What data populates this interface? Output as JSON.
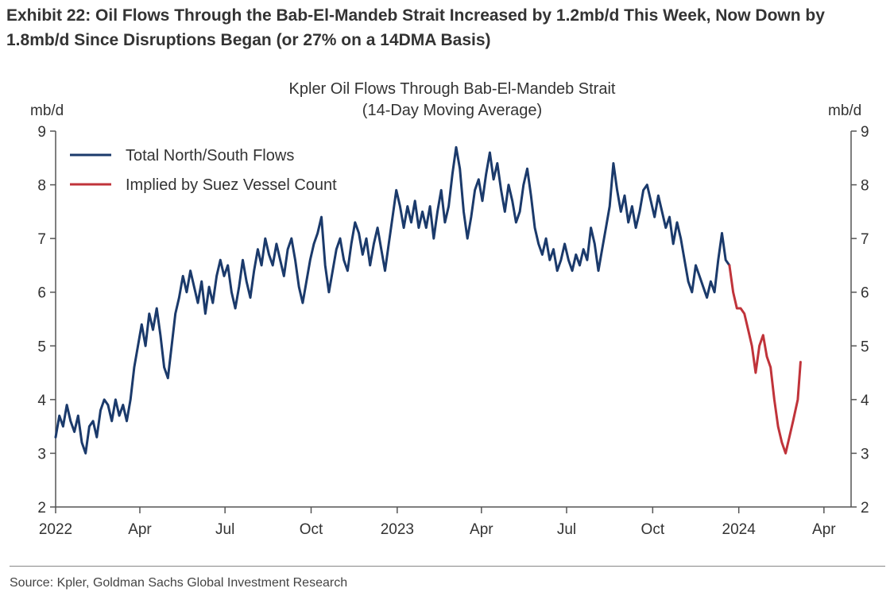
{
  "exhibit_title": "Exhibit 22: Oil Flows Through the Bab-El-Mandeb Strait Increased by 1.2mb/d This Week, Now Down by 1.8mb/d Since Disruptions Began (or 27% on a 14DMA Basis)",
  "source": "Source: Kpler, Goldman Sachs Global Investment Research",
  "chart_data": {
    "type": "line",
    "title": "Kpler Oil Flows Through Bab-El-Mandeb Strait",
    "subtitle": "(14-Day Moving Average)",
    "ylabel_left": "mb/d",
    "ylabel_right": "mb/d",
    "ylim": [
      2,
      9
    ],
    "yticks": [
      2,
      3,
      4,
      5,
      6,
      7,
      8,
      9
    ],
    "xlim": [
      "2022-01-01",
      "2024-04-30"
    ],
    "x_ticks": [
      {
        "date": "2022-01-01",
        "label": "2022"
      },
      {
        "date": "2022-04-01",
        "label": "Apr"
      },
      {
        "date": "2022-07-01",
        "label": "Jul"
      },
      {
        "date": "2022-10-01",
        "label": "Oct"
      },
      {
        "date": "2023-01-01",
        "label": "2023"
      },
      {
        "date": "2023-04-01",
        "label": "Apr"
      },
      {
        "date": "2023-07-01",
        "label": "Jul"
      },
      {
        "date": "2023-10-01",
        "label": "Oct"
      },
      {
        "date": "2024-01-01",
        "label": "2024"
      },
      {
        "date": "2024-04-01",
        "label": "Apr"
      }
    ],
    "legend_position": "top-left",
    "grid": false,
    "colors": {
      "total": "#1b3a6b",
      "suez": "#c0333a"
    },
    "series": [
      {
        "name": "Total North/South Flows",
        "color": "#1b3a6b",
        "points": [
          [
            "2022-01-01",
            3.3
          ],
          [
            "2022-01-05",
            3.7
          ],
          [
            "2022-01-09",
            3.5
          ],
          [
            "2022-01-13",
            3.9
          ],
          [
            "2022-01-17",
            3.6
          ],
          [
            "2022-01-21",
            3.4
          ],
          [
            "2022-01-25",
            3.7
          ],
          [
            "2022-01-29",
            3.2
          ],
          [
            "2022-02-02",
            3.0
          ],
          [
            "2022-02-06",
            3.5
          ],
          [
            "2022-02-10",
            3.6
          ],
          [
            "2022-02-14",
            3.3
          ],
          [
            "2022-02-18",
            3.8
          ],
          [
            "2022-02-22",
            4.0
          ],
          [
            "2022-02-26",
            3.9
          ],
          [
            "2022-03-02",
            3.6
          ],
          [
            "2022-03-06",
            4.0
          ],
          [
            "2022-03-10",
            3.7
          ],
          [
            "2022-03-14",
            3.9
          ],
          [
            "2022-03-18",
            3.6
          ],
          [
            "2022-03-22",
            4.0
          ],
          [
            "2022-03-26",
            4.6
          ],
          [
            "2022-03-30",
            5.0
          ],
          [
            "2022-04-03",
            5.4
          ],
          [
            "2022-04-07",
            5.0
          ],
          [
            "2022-04-11",
            5.6
          ],
          [
            "2022-04-15",
            5.3
          ],
          [
            "2022-04-19",
            5.7
          ],
          [
            "2022-04-23",
            5.2
          ],
          [
            "2022-04-27",
            4.6
          ],
          [
            "2022-05-01",
            4.4
          ],
          [
            "2022-05-05",
            5.0
          ],
          [
            "2022-05-09",
            5.6
          ],
          [
            "2022-05-13",
            5.9
          ],
          [
            "2022-05-17",
            6.3
          ],
          [
            "2022-05-21",
            6.0
          ],
          [
            "2022-05-25",
            6.4
          ],
          [
            "2022-05-29",
            6.1
          ],
          [
            "2022-06-02",
            5.8
          ],
          [
            "2022-06-06",
            6.2
          ],
          [
            "2022-06-10",
            5.6
          ],
          [
            "2022-06-14",
            6.1
          ],
          [
            "2022-06-18",
            5.8
          ],
          [
            "2022-06-22",
            6.3
          ],
          [
            "2022-06-26",
            6.6
          ],
          [
            "2022-06-30",
            6.3
          ],
          [
            "2022-07-04",
            6.5
          ],
          [
            "2022-07-08",
            6.0
          ],
          [
            "2022-07-12",
            5.7
          ],
          [
            "2022-07-16",
            6.1
          ],
          [
            "2022-07-20",
            6.6
          ],
          [
            "2022-07-24",
            6.2
          ],
          [
            "2022-07-28",
            5.9
          ],
          [
            "2022-08-01",
            6.4
          ],
          [
            "2022-08-05",
            6.8
          ],
          [
            "2022-08-09",
            6.5
          ],
          [
            "2022-08-13",
            7.0
          ],
          [
            "2022-08-17",
            6.7
          ],
          [
            "2022-08-21",
            6.5
          ],
          [
            "2022-08-25",
            6.9
          ],
          [
            "2022-08-29",
            6.6
          ],
          [
            "2022-09-02",
            6.3
          ],
          [
            "2022-09-06",
            6.8
          ],
          [
            "2022-09-10",
            7.0
          ],
          [
            "2022-09-14",
            6.6
          ],
          [
            "2022-09-18",
            6.1
          ],
          [
            "2022-09-22",
            5.8
          ],
          [
            "2022-09-26",
            6.2
          ],
          [
            "2022-09-30",
            6.6
          ],
          [
            "2022-10-04",
            6.9
          ],
          [
            "2022-10-08",
            7.1
          ],
          [
            "2022-10-12",
            7.4
          ],
          [
            "2022-10-16",
            6.5
          ],
          [
            "2022-10-20",
            6.0
          ],
          [
            "2022-10-24",
            6.4
          ],
          [
            "2022-10-28",
            6.8
          ],
          [
            "2022-11-01",
            7.0
          ],
          [
            "2022-11-05",
            6.6
          ],
          [
            "2022-11-09",
            6.4
          ],
          [
            "2022-11-13",
            6.9
          ],
          [
            "2022-11-17",
            7.3
          ],
          [
            "2022-11-21",
            7.1
          ],
          [
            "2022-11-25",
            6.7
          ],
          [
            "2022-11-29",
            7.0
          ],
          [
            "2022-12-03",
            6.5
          ],
          [
            "2022-12-07",
            6.9
          ],
          [
            "2022-12-11",
            7.2
          ],
          [
            "2022-12-15",
            6.8
          ],
          [
            "2022-12-19",
            6.4
          ],
          [
            "2022-12-23",
            6.9
          ],
          [
            "2022-12-27",
            7.4
          ],
          [
            "2022-12-31",
            7.9
          ],
          [
            "2023-01-04",
            7.6
          ],
          [
            "2023-01-08",
            7.2
          ],
          [
            "2023-01-12",
            7.6
          ],
          [
            "2023-01-16",
            7.3
          ],
          [
            "2023-01-20",
            7.7
          ],
          [
            "2023-01-24",
            7.2
          ],
          [
            "2023-01-28",
            7.5
          ],
          [
            "2023-02-01",
            7.2
          ],
          [
            "2023-02-05",
            7.6
          ],
          [
            "2023-02-09",
            7.0
          ],
          [
            "2023-02-13",
            7.5
          ],
          [
            "2023-02-17",
            7.9
          ],
          [
            "2023-02-21",
            7.3
          ],
          [
            "2023-02-25",
            7.6
          ],
          [
            "2023-03-01",
            8.2
          ],
          [
            "2023-03-05",
            8.7
          ],
          [
            "2023-03-09",
            8.3
          ],
          [
            "2023-03-13",
            7.5
          ],
          [
            "2023-03-17",
            7.0
          ],
          [
            "2023-03-21",
            7.4
          ],
          [
            "2023-03-25",
            7.9
          ],
          [
            "2023-03-29",
            8.1
          ],
          [
            "2023-04-02",
            7.7
          ],
          [
            "2023-04-06",
            8.2
          ],
          [
            "2023-04-10",
            8.6
          ],
          [
            "2023-04-14",
            8.1
          ],
          [
            "2023-04-18",
            8.4
          ],
          [
            "2023-04-22",
            7.9
          ],
          [
            "2023-04-26",
            7.5
          ],
          [
            "2023-04-30",
            8.0
          ],
          [
            "2023-05-04",
            7.7
          ],
          [
            "2023-05-08",
            7.3
          ],
          [
            "2023-05-12",
            7.5
          ],
          [
            "2023-05-16",
            8.0
          ],
          [
            "2023-05-20",
            8.3
          ],
          [
            "2023-05-24",
            7.8
          ],
          [
            "2023-05-28",
            7.2
          ],
          [
            "2023-06-01",
            6.9
          ],
          [
            "2023-06-05",
            6.7
          ],
          [
            "2023-06-09",
            7.0
          ],
          [
            "2023-06-13",
            6.6
          ],
          [
            "2023-06-17",
            6.8
          ],
          [
            "2023-06-21",
            6.4
          ],
          [
            "2023-06-25",
            6.6
          ],
          [
            "2023-06-29",
            6.9
          ],
          [
            "2023-07-03",
            6.6
          ],
          [
            "2023-07-07",
            6.4
          ],
          [
            "2023-07-11",
            6.7
          ],
          [
            "2023-07-15",
            6.5
          ],
          [
            "2023-07-19",
            6.8
          ],
          [
            "2023-07-23",
            6.6
          ],
          [
            "2023-07-27",
            7.2
          ],
          [
            "2023-07-31",
            6.9
          ],
          [
            "2023-08-04",
            6.4
          ],
          [
            "2023-08-08",
            6.8
          ],
          [
            "2023-08-12",
            7.2
          ],
          [
            "2023-08-16",
            7.6
          ],
          [
            "2023-08-20",
            8.4
          ],
          [
            "2023-08-24",
            7.9
          ],
          [
            "2023-08-28",
            7.5
          ],
          [
            "2023-09-01",
            7.8
          ],
          [
            "2023-09-05",
            7.3
          ],
          [
            "2023-09-09",
            7.6
          ],
          [
            "2023-09-13",
            7.2
          ],
          [
            "2023-09-17",
            7.5
          ],
          [
            "2023-09-21",
            7.9
          ],
          [
            "2023-09-25",
            8.0
          ],
          [
            "2023-09-29",
            7.7
          ],
          [
            "2023-10-03",
            7.4
          ],
          [
            "2023-10-07",
            7.8
          ],
          [
            "2023-10-11",
            7.5
          ],
          [
            "2023-10-15",
            7.2
          ],
          [
            "2023-10-19",
            7.4
          ],
          [
            "2023-10-23",
            6.9
          ],
          [
            "2023-10-27",
            7.3
          ],
          [
            "2023-10-31",
            7.0
          ],
          [
            "2023-11-04",
            6.6
          ],
          [
            "2023-11-08",
            6.2
          ],
          [
            "2023-11-12",
            6.0
          ],
          [
            "2023-11-16",
            6.5
          ],
          [
            "2023-11-20",
            6.3
          ],
          [
            "2023-11-24",
            6.1
          ],
          [
            "2023-11-28",
            5.9
          ],
          [
            "2023-12-02",
            6.2
          ],
          [
            "2023-12-06",
            6.0
          ],
          [
            "2023-12-10",
            6.6
          ],
          [
            "2023-12-14",
            7.1
          ],
          [
            "2023-12-18",
            6.6
          ],
          [
            "2023-12-22",
            6.5
          ]
        ]
      },
      {
        "name": "Implied by Suez Vessel Count",
        "color": "#c0333a",
        "points": [
          [
            "2023-12-22",
            6.5
          ],
          [
            "2023-12-26",
            6.0
          ],
          [
            "2023-12-30",
            5.7
          ],
          [
            "2024-01-03",
            5.7
          ],
          [
            "2024-01-07",
            5.6
          ],
          [
            "2024-01-11",
            5.3
          ],
          [
            "2024-01-15",
            5.0
          ],
          [
            "2024-01-19",
            4.5
          ],
          [
            "2024-01-23",
            5.0
          ],
          [
            "2024-01-27",
            5.2
          ],
          [
            "2024-01-31",
            4.8
          ],
          [
            "2024-02-04",
            4.6
          ],
          [
            "2024-02-08",
            4.0
          ],
          [
            "2024-02-12",
            3.5
          ],
          [
            "2024-02-16",
            3.2
          ],
          [
            "2024-02-20",
            3.0
          ],
          [
            "2024-02-24",
            3.3
          ],
          [
            "2024-02-28",
            3.6
          ],
          [
            "2024-03-04",
            4.0
          ],
          [
            "2024-03-07",
            4.7
          ]
        ]
      }
    ]
  }
}
